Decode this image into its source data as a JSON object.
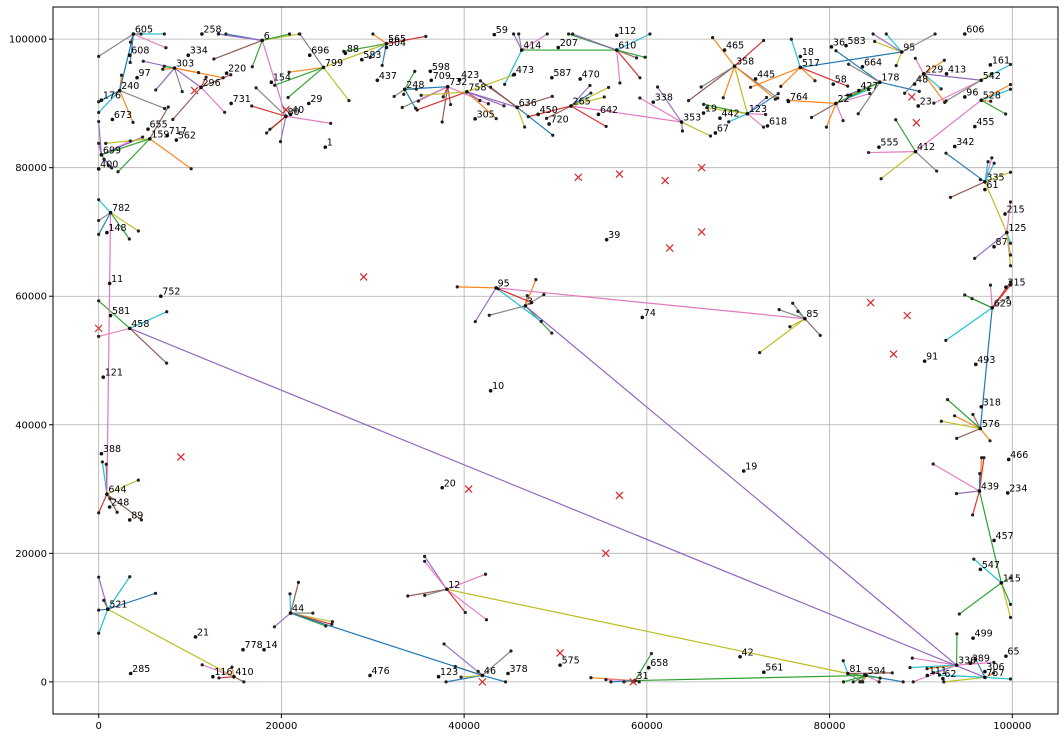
{
  "chart_data": {
    "type": "scatter",
    "title": "",
    "xlabel": "",
    "ylabel": "",
    "xlim": [
      -5000,
      105000
    ],
    "ylim": [
      -5000,
      105000
    ],
    "x_ticks": [
      0,
      20000,
      40000,
      60000,
      80000,
      100000
    ],
    "y_ticks": [
      0,
      20000,
      40000,
      60000,
      80000,
      100000
    ],
    "x_tick_labels": [
      "0",
      "20000",
      "40000",
      "60000",
      "80000",
      "100000"
    ],
    "y_tick_labels": [
      "0",
      "20000",
      "40000",
      "60000",
      "80000",
      "100000"
    ],
    "grid": true,
    "legend": "none",
    "hubs": [
      {
        "x": 0,
        "y": 55000,
        "color": "#d62728",
        "marker": "x"
      },
      {
        "x": 9000,
        "y": 35000,
        "color": "#d62728",
        "marker": "x"
      },
      {
        "x": 10500,
        "y": 92000,
        "color": "#d62728",
        "marker": "x"
      },
      {
        "x": 20500,
        "y": 89000,
        "color": "#d62728",
        "marker": "x"
      },
      {
        "x": 29000,
        "y": 63000,
        "color": "#d62728",
        "marker": "x"
      },
      {
        "x": 40500,
        "y": 30000,
        "color": "#d62728",
        "marker": "x"
      },
      {
        "x": 42000,
        "y": 0,
        "color": "#d62728",
        "marker": "x"
      },
      {
        "x": 50500,
        "y": 4500,
        "color": "#d62728",
        "marker": "x"
      },
      {
        "x": 52500,
        "y": 78500,
        "color": "#d62728",
        "marker": "x"
      },
      {
        "x": 57000,
        "y": 79000,
        "color": "#d62728",
        "marker": "x"
      },
      {
        "x": 62000,
        "y": 78000,
        "color": "#d62728",
        "marker": "x"
      },
      {
        "x": 66000,
        "y": 80000,
        "color": "#d62728",
        "marker": "x"
      },
      {
        "x": 66000,
        "y": 70000,
        "color": "#d62728",
        "marker": "x"
      },
      {
        "x": 62500,
        "y": 67500,
        "color": "#d62728",
        "marker": "x"
      },
      {
        "x": 57000,
        "y": 29000,
        "color": "#d62728",
        "marker": "x"
      },
      {
        "x": 55500,
        "y": 20000,
        "color": "#d62728",
        "marker": "x"
      },
      {
        "x": 58500,
        "y": 0,
        "color": "#d62728",
        "marker": "x"
      },
      {
        "x": 84500,
        "y": 59000,
        "color": "#d62728",
        "marker": "x"
      },
      {
        "x": 88500,
        "y": 57000,
        "color": "#d62728",
        "marker": "x"
      },
      {
        "x": 87000,
        "y": 51000,
        "color": "#d62728",
        "marker": "x"
      },
      {
        "x": 89000,
        "y": 91000,
        "color": "#d62728",
        "marker": "x"
      },
      {
        "x": 89500,
        "y": 87000,
        "color": "#d62728",
        "marker": "x"
      }
    ],
    "point_labels": [
      {
        "text": "605",
        "x": 3800,
        "y": 100800
      },
      {
        "text": "608",
        "x": 3400,
        "y": 97500
      },
      {
        "text": "97",
        "x": 4200,
        "y": 94000
      },
      {
        "text": "240",
        "x": 2300,
        "y": 92000
      },
      {
        "text": "176",
        "x": 300,
        "y": 90500
      },
      {
        "text": "673",
        "x": 1500,
        "y": 87500
      },
      {
        "text": "699",
        "x": 300,
        "y": 82000
      },
      {
        "text": "400",
        "x": 0,
        "y": 79800
      },
      {
        "text": "655",
        "x": 5400,
        "y": 86000
      },
      {
        "text": "159",
        "x": 5600,
        "y": 84500
      },
      {
        "text": "717",
        "x": 7500,
        "y": 85000
      },
      {
        "text": "562",
        "x": 8500,
        "y": 84300
      },
      {
        "text": "303",
        "x": 8300,
        "y": 95500
      },
      {
        "text": "334",
        "x": 9800,
        "y": 97500
      },
      {
        "text": "258",
        "x": 11300,
        "y": 100800
      },
      {
        "text": "296",
        "x": 11200,
        "y": 92500
      },
      {
        "text": "220",
        "x": 14000,
        "y": 94700
      },
      {
        "text": "731",
        "x": 14500,
        "y": 90000
      },
      {
        "text": "6",
        "x": 17900,
        "y": 99800
      },
      {
        "text": "154",
        "x": 18900,
        "y": 93300
      },
      {
        "text": "29",
        "x": 23000,
        "y": 90000
      },
      {
        "text": "80",
        "x": 20500,
        "y": 88000
      },
      {
        "text": "40",
        "x": 21000,
        "y": 88300
      },
      {
        "text": "696",
        "x": 23100,
        "y": 97500
      },
      {
        "text": "799",
        "x": 24600,
        "y": 95600
      },
      {
        "text": "88",
        "x": 27000,
        "y": 97800
      },
      {
        "text": "583",
        "x": 28800,
        "y": 96800
      },
      {
        "text": "565",
        "x": 31500,
        "y": 99300
      },
      {
        "text": "504",
        "x": 31500,
        "y": 98700
      },
      {
        "text": "437",
        "x": 30500,
        "y": 93600
      },
      {
        "text": "248",
        "x": 33500,
        "y": 92200
      },
      {
        "text": "598",
        "x": 36300,
        "y": 95000
      },
      {
        "text": "709",
        "x": 36400,
        "y": 93600
      },
      {
        "text": "732",
        "x": 38200,
        "y": 92600
      },
      {
        "text": "423",
        "x": 39500,
        "y": 93700
      },
      {
        "text": "59",
        "x": 43300,
        "y": 100700
      },
      {
        "text": "414",
        "x": 46300,
        "y": 98300
      },
      {
        "text": "207",
        "x": 50300,
        "y": 98700
      },
      {
        "text": "112",
        "x": 56700,
        "y": 100600
      },
      {
        "text": "610",
        "x": 56700,
        "y": 98300
      },
      {
        "text": "587",
        "x": 49600,
        "y": 94000
      },
      {
        "text": "470",
        "x": 52700,
        "y": 93800
      },
      {
        "text": "758",
        "x": 40300,
        "y": 91800
      },
      {
        "text": "473",
        "x": 45500,
        "y": 94500
      },
      {
        "text": "305",
        "x": 41200,
        "y": 87600
      },
      {
        "text": "636",
        "x": 45800,
        "y": 89400
      },
      {
        "text": "450",
        "x": 48100,
        "y": 88300
      },
      {
        "text": "720",
        "x": 49300,
        "y": 86800
      },
      {
        "text": "265",
        "x": 51700,
        "y": 89600
      },
      {
        "text": "642",
        "x": 54700,
        "y": 88300
      },
      {
        "text": "338",
        "x": 60700,
        "y": 90200
      },
      {
        "text": "353",
        "x": 63800,
        "y": 87100
      },
      {
        "text": "19",
        "x": 66200,
        "y": 88500
      },
      {
        "text": "442",
        "x": 68000,
        "y": 87700
      },
      {
        "text": "123",
        "x": 71000,
        "y": 88400
      },
      {
        "text": "445",
        "x": 71900,
        "y": 93800
      },
      {
        "text": "465",
        "x": 68500,
        "y": 98300
      },
      {
        "text": "358",
        "x": 69600,
        "y": 95800
      },
      {
        "text": "67",
        "x": 67500,
        "y": 85400
      },
      {
        "text": "18",
        "x": 76800,
        "y": 97300
      },
      {
        "text": "517",
        "x": 76800,
        "y": 95600
      },
      {
        "text": "36",
        "x": 80200,
        "y": 98800
      },
      {
        "text": "583",
        "x": 81800,
        "y": 99000
      },
      {
        "text": "95",
        "x": 87900,
        "y": 98000
      },
      {
        "text": "664",
        "x": 83600,
        "y": 95700
      },
      {
        "text": "58",
        "x": 80400,
        "y": 93000
      },
      {
        "text": "178",
        "x": 85500,
        "y": 93300
      },
      {
        "text": "427",
        "x": 83200,
        "y": 92000
      },
      {
        "text": "764",
        "x": 75500,
        "y": 90300
      },
      {
        "text": "22",
        "x": 80700,
        "y": 90000
      },
      {
        "text": "618",
        "x": 73200,
        "y": 86500
      },
      {
        "text": "606",
        "x": 94800,
        "y": 100800
      },
      {
        "text": "229",
        "x": 90300,
        "y": 94600
      },
      {
        "text": "413",
        "x": 92800,
        "y": 94600
      },
      {
        "text": "161",
        "x": 97600,
        "y": 96000
      },
      {
        "text": "542",
        "x": 96600,
        "y": 93600
      },
      {
        "text": "23",
        "x": 89700,
        "y": 89600
      },
      {
        "text": "48",
        "x": 89300,
        "y": 93000
      },
      {
        "text": "528",
        "x": 96600,
        "y": 90500
      },
      {
        "text": "96",
        "x": 94800,
        "y": 91000
      },
      {
        "text": "455",
        "x": 95900,
        "y": 86400
      },
      {
        "text": "412",
        "x": 89400,
        "y": 82500
      },
      {
        "text": "342",
        "x": 93700,
        "y": 83300
      },
      {
        "text": "555",
        "x": 85400,
        "y": 83200
      },
      {
        "text": "335",
        "x": 97000,
        "y": 77800
      },
      {
        "text": "61",
        "x": 97000,
        "y": 76600
      },
      {
        "text": "215",
        "x": 99200,
        "y": 72800
      },
      {
        "text": "125",
        "x": 99400,
        "y": 69900
      },
      {
        "text": "87",
        "x": 98000,
        "y": 67700
      },
      {
        "text": "315",
        "x": 99300,
        "y": 61400
      },
      {
        "text": "629",
        "x": 97800,
        "y": 58200
      },
      {
        "text": "493",
        "x": 96000,
        "y": 49400
      },
      {
        "text": "318",
        "x": 96600,
        "y": 42800
      },
      {
        "text": "576",
        "x": 96500,
        "y": 39400
      },
      {
        "text": "466",
        "x": 99600,
        "y": 34600
      },
      {
        "text": "234",
        "x": 99500,
        "y": 29400
      },
      {
        "text": "439",
        "x": 96400,
        "y": 29700
      },
      {
        "text": "457",
        "x": 98000,
        "y": 22000
      },
      {
        "text": "547",
        "x": 96500,
        "y": 17500
      },
      {
        "text": "115",
        "x": 98800,
        "y": 15400
      },
      {
        "text": "499",
        "x": 95700,
        "y": 6800
      },
      {
        "text": "65",
        "x": 99300,
        "y": 4000
      },
      {
        "text": "757",
        "x": 97000,
        "y": 700
      },
      {
        "text": "11",
        "x": 1200,
        "y": 62000
      },
      {
        "text": "581",
        "x": 1300,
        "y": 57000
      },
      {
        "text": "458",
        "x": 3400,
        "y": 55000
      },
      {
        "text": "752",
        "x": 6800,
        "y": 60000
      },
      {
        "text": "148",
        "x": 900,
        "y": 69900
      },
      {
        "text": "782",
        "x": 1300,
        "y": 73000
      },
      {
        "text": "121",
        "x": 500,
        "y": 47400
      },
      {
        "text": "388",
        "x": 300,
        "y": 35500
      },
      {
        "text": "644",
        "x": 900,
        "y": 29200
      },
      {
        "text": "248",
        "x": 1200,
        "y": 27200
      },
      {
        "text": "89",
        "x": 3400,
        "y": 25200
      },
      {
        "text": "521",
        "x": 1000,
        "y": 11300
      },
      {
        "text": "285",
        "x": 3500,
        "y": 1300
      },
      {
        "text": "116",
        "x": 12500,
        "y": 800
      },
      {
        "text": "410",
        "x": 14800,
        "y": 800
      },
      {
        "text": "778",
        "x": 15800,
        "y": 5000
      },
      {
        "text": "14",
        "x": 18100,
        "y": 5000
      },
      {
        "text": "44",
        "x": 21000,
        "y": 10700
      },
      {
        "text": "476",
        "x": 29700,
        "y": 1000
      },
      {
        "text": "123",
        "x": 37200,
        "y": 800
      },
      {
        "text": "46",
        "x": 42000,
        "y": 1000
      },
      {
        "text": "378",
        "x": 44800,
        "y": 1300
      },
      {
        "text": "575",
        "x": 50500,
        "y": 2600
      },
      {
        "text": "31",
        "x": 58700,
        "y": 200
      },
      {
        "text": "658",
        "x": 60200,
        "y": 2200
      },
      {
        "text": "561",
        "x": 72800,
        "y": 1500
      },
      {
        "text": "594",
        "x": 84000,
        "y": 1000
      },
      {
        "text": "111",
        "x": 90700,
        "y": 1000
      },
      {
        "text": "62",
        "x": 92400,
        "y": 500
      },
      {
        "text": "336",
        "x": 93900,
        "y": 2600
      },
      {
        "text": "389",
        "x": 95400,
        "y": 2900
      },
      {
        "text": "306",
        "x": 97000,
        "y": 1600
      },
      {
        "text": "3",
        "x": 46700,
        "y": 58500
      },
      {
        "text": "10",
        "x": 42900,
        "y": 45300
      },
      {
        "text": "19",
        "x": 70600,
        "y": 32800
      },
      {
        "text": "85",
        "x": 77300,
        "y": 56500
      },
      {
        "text": "91",
        "x": 90400,
        "y": 49900
      },
      {
        "text": "74",
        "x": 59500,
        "y": 56700
      },
      {
        "text": "95",
        "x": 43500,
        "y": 61300
      },
      {
        "text": "39",
        "x": 55600,
        "y": 68800
      },
      {
        "text": "1",
        "x": 24800,
        "y": 83200
      },
      {
        "text": "12",
        "x": 38100,
        "y": 14400
      },
      {
        "text": "20",
        "x": 37600,
        "y": 30200
      },
      {
        "text": "42",
        "x": 70200,
        "y": 3900
      },
      {
        "text": "81",
        "x": 82000,
        "y": 1300
      },
      {
        "text": "21",
        "x": 10600,
        "y": 7000
      }
    ]
  }
}
